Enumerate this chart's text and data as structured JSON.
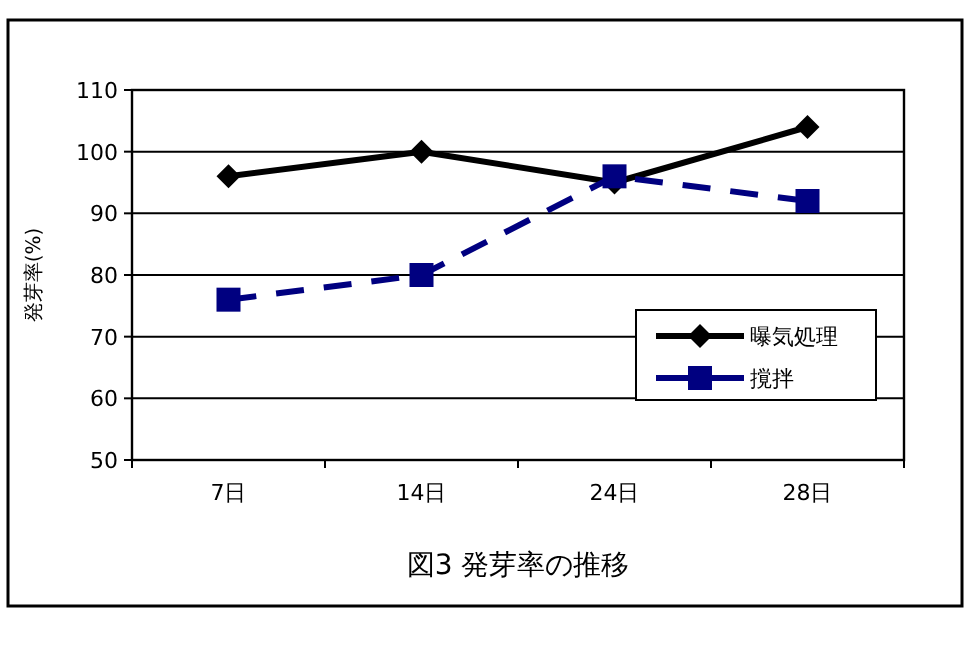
{
  "chart_data": {
    "type": "line",
    "title": "図3  発芽率の推移",
    "ylabel": "発芽率(%)",
    "categories": [
      "7日",
      "14日",
      "24日",
      "28日"
    ],
    "series": [
      {
        "name": "曝気処理",
        "color": "#000000",
        "values": [
          96,
          100,
          95,
          104
        ],
        "marker": "diamond",
        "line_style": "solid"
      },
      {
        "name": "撹拌",
        "color": "#000080",
        "values": [
          76,
          80,
          96,
          92
        ],
        "marker": "square",
        "line_style": "dashed"
      }
    ],
    "ylim": [
      50,
      110
    ],
    "yticks": [
      50,
      60,
      70,
      80,
      90,
      100,
      110
    ],
    "grid": "y",
    "legend": "bottom right"
  }
}
